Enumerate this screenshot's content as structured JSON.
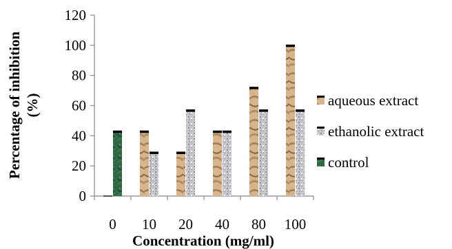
{
  "chart_data": {
    "type": "bar",
    "categories": [
      "0",
      "10",
      "20",
      "40",
      "80",
      "100"
    ],
    "series": [
      {
        "name": "aqueous extract",
        "values": [
          0,
          43,
          29,
          43,
          72,
          100
        ],
        "color": "#c8a27a",
        "pattern": "wood-texture"
      },
      {
        "name": "ethanolic extract",
        "values": [
          null,
          29,
          57,
          43,
          57,
          57
        ],
        "color": "#c0c0c4",
        "pattern": "granite-texture"
      },
      {
        "name": "control",
        "values": [
          43,
          null,
          null,
          null,
          null,
          null
        ],
        "color": "#2e6b45",
        "pattern": "green-marble-texture"
      }
    ],
    "title": "",
    "xlabel": "Concentration (mg/ml)",
    "ylabel_line1": "Percentage of inhibition",
    "ylabel_line2": "(%)",
    "ylim": [
      0,
      120
    ],
    "yticks": [
      "0",
      "20",
      "40",
      "60",
      "80",
      "100",
      "120"
    ],
    "grid": false,
    "legend_position": "right"
  }
}
